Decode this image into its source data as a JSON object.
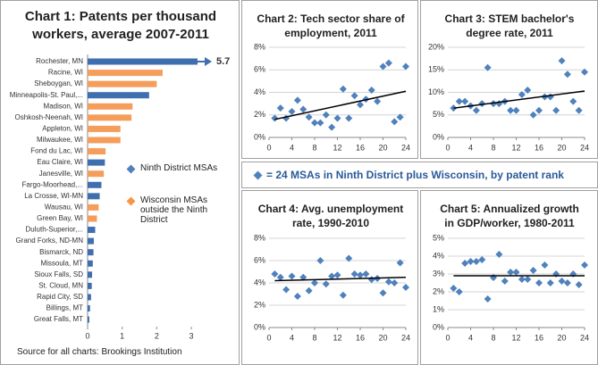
{
  "chart_data": [
    {
      "type": "hbar",
      "title": "Chart 1: Patents per thousand workers, average 2007-2011",
      "categories": [
        "Rochester, MN",
        "Racine, WI",
        "Sheboygan, WI",
        "Minneapolis-St. Paul,...",
        "Madison, WI",
        "Oshkosh-Neenah, WI",
        "Appleton, WI",
        "Milwaukee, WI",
        "Fond du Lac, WI",
        "Eau Claire, WI",
        "Janesville, WI",
        "Fargo-Moorhead,...",
        "La Crosse, WI-MN",
        "Wausau, WI",
        "Green Bay, WI",
        "Duluth-Superior,...",
        "Grand Forks, ND-MN",
        "Bismarck, ND",
        "Missoula, MT",
        "Sioux Falls, SD",
        "St. Cloud, MN",
        "Rapid City, SD",
        "Billings, MT",
        "Great Falls, MT"
      ],
      "values": [
        5.7,
        2.17,
        2.0,
        1.78,
        1.3,
        1.27,
        0.95,
        0.95,
        0.52,
        0.5,
        0.47,
        0.4,
        0.35,
        0.32,
        0.27,
        0.22,
        0.18,
        0.17,
        0.15,
        0.13,
        0.12,
        0.1,
        0.07,
        0.05
      ],
      "value_labels": [
        "5.7",
        null,
        null,
        null,
        null,
        null,
        null,
        null,
        null,
        null,
        null,
        null,
        null,
        null,
        null,
        null,
        null,
        null,
        null,
        null,
        null,
        null,
        null,
        null
      ],
      "colors": [
        "#3f6fae",
        "#f59d5b",
        "#f59d5b",
        "#3f6fae",
        "#f59d5b",
        "#f59d5b",
        "#f59d5b",
        "#f59d5b",
        "#f59d5b",
        "#3f6fae",
        "#f59d5b",
        "#3f6fae",
        "#3f6fae",
        "#f59d5b",
        "#f59d5b",
        "#3f6fae",
        "#3f6fae",
        "#3f6fae",
        "#3f6fae",
        "#3f6fae",
        "#3f6fae",
        "#3f6fae",
        "#3f6fae",
        "#3f6fae"
      ],
      "legend": [
        {
          "name": "Ninth District MSAs",
          "color": "#4f81bd"
        },
        {
          "name": "Wisconsin MSAs outside the Ninth District",
          "color": "#f79646"
        }
      ],
      "xlim": [
        0,
        3
      ],
      "xticks": [
        0,
        1,
        2,
        3
      ]
    },
    {
      "type": "scatter",
      "title": "Chart 2: Tech sector share of employment, 2011",
      "color": "#4f81bd",
      "x": [
        1,
        2,
        3,
        4,
        5,
        6,
        7,
        8,
        9,
        10,
        11,
        12,
        13,
        14,
        15,
        16,
        17,
        18,
        19,
        20,
        21,
        22,
        23,
        24
      ],
      "values": [
        1.7,
        2.6,
        1.7,
        2.3,
        3.3,
        2.5,
        1.8,
        1.3,
        1.3,
        2.0,
        0.9,
        1.7,
        4.3,
        1.7,
        3.7,
        2.9,
        3.4,
        4.2,
        3.2,
        6.3,
        6.6,
        1.4,
        1.8,
        6.3
      ],
      "trend": {
        "x": [
          1,
          24
        ],
        "values": [
          1.6,
          4.1
        ]
      },
      "xlim": [
        0,
        24
      ],
      "xticks": [
        0,
        4,
        8,
        12,
        16,
        20,
        24
      ],
      "ylim": [
        0,
        8
      ],
      "yticks": [
        {
          "value": 0,
          "label": "0%"
        },
        {
          "value": 2,
          "label": "2%"
        },
        {
          "value": 4,
          "label": "4%"
        },
        {
          "value": 6,
          "label": "6%"
        },
        {
          "value": 8,
          "label": "8%"
        }
      ],
      "grid": true
    },
    {
      "type": "scatter",
      "title": "Chart 3: STEM bachelor's degree rate, 2011",
      "color": "#4f81bd",
      "x": [
        1,
        2,
        3,
        4,
        5,
        6,
        7,
        8,
        9,
        10,
        11,
        12,
        13,
        14,
        15,
        16,
        17,
        18,
        19,
        20,
        21,
        22,
        23,
        24
      ],
      "values": [
        6.5,
        8,
        8,
        7,
        6,
        7.5,
        15.5,
        7.5,
        7.5,
        8,
        6,
        6,
        9.5,
        10.5,
        5,
        6,
        9,
        9,
        6,
        17,
        14,
        8,
        6,
        14.5
      ],
      "trend": {
        "x": [
          1,
          24
        ],
        "values": [
          6.5,
          10.3
        ]
      },
      "xlim": [
        0,
        24
      ],
      "xticks": [
        0,
        4,
        8,
        12,
        16,
        20,
        24
      ],
      "ylim": [
        0,
        20
      ],
      "yticks": [
        {
          "value": 0,
          "label": "0%"
        },
        {
          "value": 5,
          "label": "5%"
        },
        {
          "value": 10,
          "label": "10%"
        },
        {
          "value": 15,
          "label": "15%"
        },
        {
          "value": 20,
          "label": "20%"
        }
      ],
      "grid": true
    },
    {
      "type": "scatter",
      "title": "Chart 4: Avg. unemployment rate, 1990-2010",
      "color": "#4f81bd",
      "x": [
        1,
        2,
        3,
        4,
        5,
        6,
        7,
        8,
        9,
        10,
        11,
        12,
        13,
        14,
        15,
        16,
        17,
        18,
        19,
        20,
        21,
        22,
        23,
        24
      ],
      "values": [
        4.8,
        4.5,
        3.4,
        4.6,
        2.8,
        4.5,
        3.3,
        4.0,
        6.0,
        3.9,
        4.6,
        4.7,
        2.9,
        6.2,
        4.8,
        4.7,
        4.8,
        4.3,
        4.4,
        3.1,
        4.1,
        4.0,
        5.8,
        3.6
      ],
      "trend": {
        "x": [
          1,
          24
        ],
        "values": [
          4.2,
          4.5
        ]
      },
      "xlim": [
        0,
        24
      ],
      "xticks": [
        0,
        4,
        8,
        12,
        16,
        20,
        24
      ],
      "ylim": [
        0,
        8
      ],
      "yticks": [
        {
          "value": 0,
          "label": "0%"
        },
        {
          "value": 2,
          "label": "2%"
        },
        {
          "value": 4,
          "label": "4%"
        },
        {
          "value": 6,
          "label": "6%"
        },
        {
          "value": 8,
          "label": "8%"
        }
      ],
      "grid": true
    },
    {
      "type": "scatter",
      "title": "Chart 5: Annualized growth in GDP/worker, 1980-2011",
      "color": "#4f81bd",
      "x": [
        1,
        2,
        3,
        4,
        5,
        6,
        7,
        8,
        9,
        10,
        11,
        12,
        13,
        14,
        15,
        16,
        17,
        18,
        19,
        20,
        21,
        22,
        23,
        24
      ],
      "values": [
        2.2,
        2.0,
        3.6,
        3.7,
        3.7,
        3.8,
        1.6,
        2.8,
        4.1,
        2.6,
        3.1,
        3.1,
        2.7,
        2.7,
        3.2,
        2.5,
        3.5,
        2.5,
        3.0,
        2.6,
        2.5,
        3.0,
        2.4,
        3.5
      ],
      "trend": {
        "x": [
          1,
          24
        ],
        "values": [
          2.9,
          2.9
        ]
      },
      "xlim": [
        0,
        24
      ],
      "xticks": [
        0,
        4,
        8,
        12,
        16,
        20,
        24
      ],
      "ylim": [
        0,
        5
      ],
      "yticks": [
        {
          "value": 0,
          "label": "0%"
        },
        {
          "value": 1,
          "label": "1%"
        },
        {
          "value": 2,
          "label": "2%"
        },
        {
          "value": 3,
          "label": "3%"
        },
        {
          "value": 4,
          "label": "4%"
        },
        {
          "value": 5,
          "label": "5%"
        }
      ],
      "grid": true
    }
  ],
  "note": "= 24 MSAs in Ninth District plus Wisconsin, by patent rank",
  "source": "Source for all charts: Brookings Institution"
}
